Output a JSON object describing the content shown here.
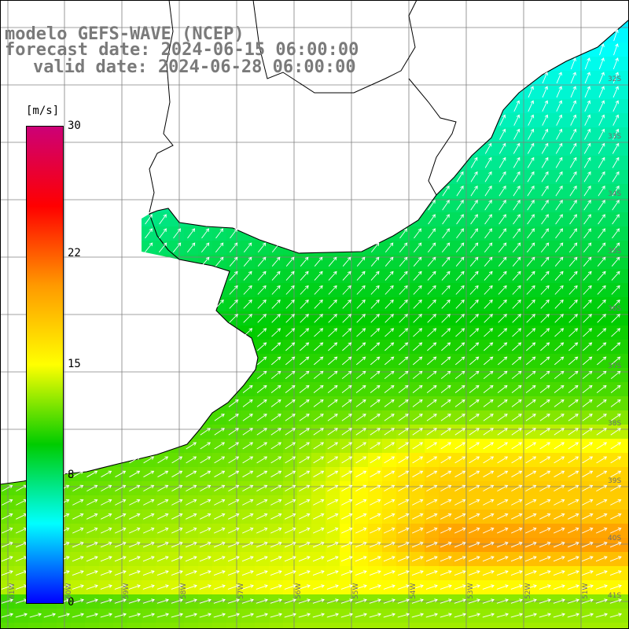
{
  "title": {
    "line1": "modelo GEFS-WAVE (NCEP)",
    "line2": "forecast date: 2024-06-15 06:00:00",
    "line3": "valid date: 2024-06-28 06:00:00"
  },
  "colorbar": {
    "unit": "[m/s]",
    "ticks": [
      "30",
      "22",
      "15",
      "8",
      "0"
    ],
    "tick_values": [
      30,
      22,
      15,
      8,
      0
    ],
    "range": [
      0,
      30
    ],
    "colors": [
      "#0000ff",
      "#00ffff",
      "#00cc00",
      "#ffff00",
      "#ff9900",
      "#ff0000",
      "#cc0077"
    ]
  },
  "latitude_labels": [
    "32S",
    "33S",
    "34S",
    "35S",
    "36S",
    "37S",
    "38S",
    "39S",
    "40S",
    "41S"
  ],
  "longitude_labels": [
    "61W",
    "60W",
    "59W",
    "58W",
    "57W",
    "56W",
    "55W",
    "54W",
    "53W",
    "52W",
    "51W"
  ],
  "map": {
    "land_color": "#ffffff",
    "coastline_color": "#000000",
    "grid_color": "#808080",
    "arrow_color": "#ffffff",
    "field": "wind speed"
  }
}
